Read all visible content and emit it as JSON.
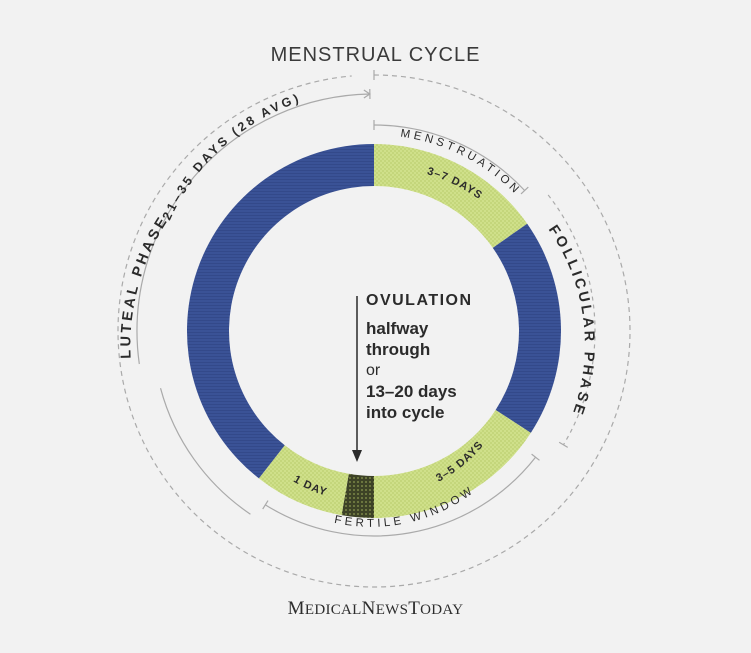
{
  "title": "MENSTRUAL CYCLE",
  "cycle_length": "21–35 DAYS (28 AVG)",
  "phases": {
    "menstruation": "MENSTRUATION",
    "follicular": "FOLLICULAR PHASE",
    "luteal": "LUTEAL PHASE",
    "fertile_window": "FERTILE WINDOW"
  },
  "segments": {
    "menstruation_days": "3–7 DAYS",
    "pre_ovulation_days": "3–5 DAYS",
    "post_ovulation_days": "1 DAY"
  },
  "ovulation": {
    "heading": "OVULATION",
    "line1": "halfway",
    "line2": "through",
    "or": "or",
    "line3": "13–20 days",
    "line4": "into cycle"
  },
  "brand": {
    "m": "M",
    "edical": "EDICAL",
    "n": "N",
    "ews": "EWS",
    "t": "T",
    "oday": "ODAY"
  },
  "colors": {
    "luteal": "#3a5296",
    "menstruation": "#cfe08a",
    "fertile": "#cfe08a",
    "ovulation": "#3d4226",
    "text": "#2b2b2b",
    "guide": "#aaaaaa"
  }
}
